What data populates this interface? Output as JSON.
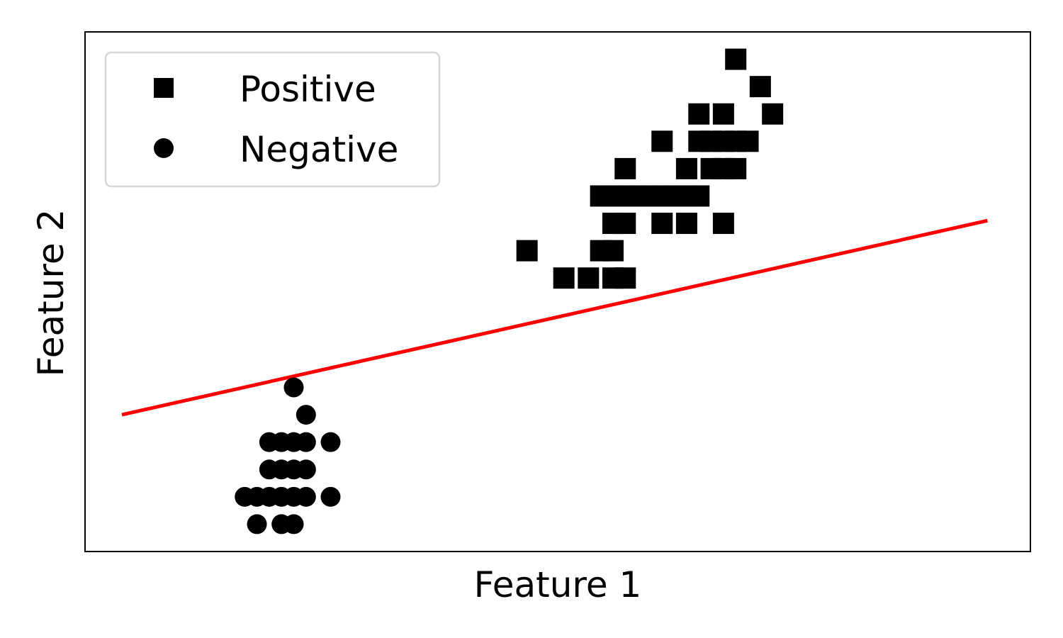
{
  "chart_data": {
    "type": "scatter",
    "title": "",
    "xlabel": "Feature 1",
    "ylabel": "Feature 2",
    "xlim": [
      -0.3,
      7.4
    ],
    "ylim": [
      -0.3,
      1.6
    ],
    "grid": false,
    "ticks": "hidden",
    "legend": {
      "location": "upper-left",
      "entries": [
        "Positive",
        "Negative"
      ]
    },
    "series": [
      {
        "name": "Positive",
        "marker": "square",
        "color": "#000000",
        "points": [
          [
            5.0,
            1.5
          ],
          [
            5.2,
            1.4
          ],
          [
            4.7,
            1.3
          ],
          [
            4.9,
            1.3
          ],
          [
            5.3,
            1.3
          ],
          [
            4.4,
            1.2
          ],
          [
            4.7,
            1.2
          ],
          [
            4.8,
            1.2
          ],
          [
            4.9,
            1.2
          ],
          [
            5.0,
            1.2
          ],
          [
            5.1,
            1.2
          ],
          [
            4.1,
            1.1
          ],
          [
            4.6,
            1.1
          ],
          [
            4.8,
            1.1
          ],
          [
            4.9,
            1.1
          ],
          [
            5.0,
            1.1
          ],
          [
            3.9,
            1.0
          ],
          [
            4.0,
            1.0
          ],
          [
            4.1,
            1.0
          ],
          [
            4.2,
            1.0
          ],
          [
            4.3,
            1.0
          ],
          [
            4.4,
            1.0
          ],
          [
            4.5,
            1.0
          ],
          [
            4.6,
            1.0
          ],
          [
            4.7,
            1.0
          ],
          [
            4.0,
            0.9
          ],
          [
            4.1,
            0.9
          ],
          [
            4.4,
            0.9
          ],
          [
            4.6,
            0.9
          ],
          [
            4.9,
            0.9
          ],
          [
            3.3,
            0.8
          ],
          [
            3.9,
            0.8
          ],
          [
            4.0,
            0.8
          ],
          [
            3.6,
            0.7
          ],
          [
            3.8,
            0.7
          ],
          [
            4.0,
            0.7
          ],
          [
            4.1,
            0.7
          ]
        ]
      },
      {
        "name": "Negative",
        "marker": "circle",
        "color": "#000000",
        "points": [
          [
            1.4,
            0.3
          ],
          [
            1.5,
            0.2
          ],
          [
            1.2,
            0.1
          ],
          [
            1.3,
            0.1
          ],
          [
            1.4,
            0.1
          ],
          [
            1.5,
            0.1
          ],
          [
            1.7,
            0.1
          ],
          [
            1.2,
            0.0
          ],
          [
            1.3,
            0.0
          ],
          [
            1.4,
            0.0
          ],
          [
            1.5,
            0.0
          ],
          [
            1.0,
            -0.1
          ],
          [
            1.1,
            -0.1
          ],
          [
            1.2,
            -0.1
          ],
          [
            1.3,
            -0.1
          ],
          [
            1.4,
            -0.1
          ],
          [
            1.5,
            -0.1
          ],
          [
            1.7,
            -0.1
          ],
          [
            1.1,
            -0.2
          ],
          [
            1.3,
            -0.2
          ],
          [
            1.4,
            -0.2
          ]
        ]
      }
    ],
    "lines": [
      {
        "name": "decision boundary",
        "color": "#ff0000",
        "x": [
          0.0,
          7.05
        ],
        "y": [
          0.2,
          0.91
        ]
      }
    ]
  }
}
